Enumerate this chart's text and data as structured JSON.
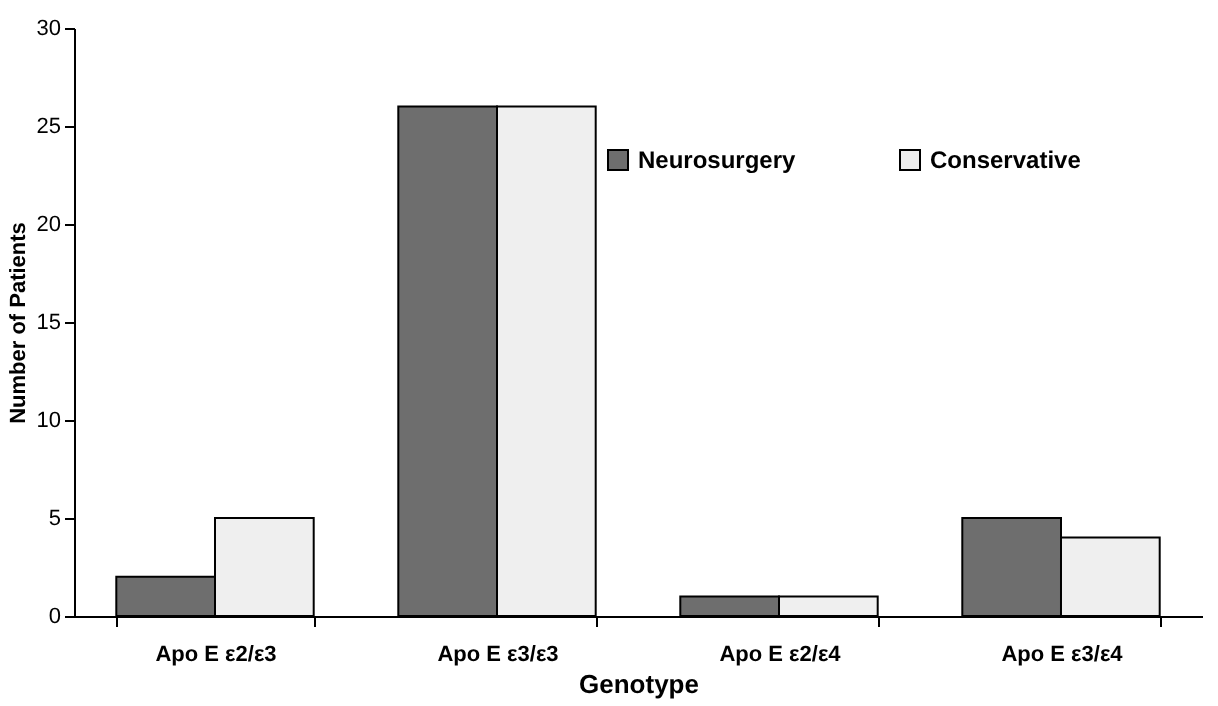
{
  "chart_data": {
    "type": "bar",
    "xlabel": "Genotype",
    "ylabel": "Number of Patients",
    "categories": [
      "Apo E ε2/ε3",
      "Apo E ε3/ε3",
      "Apo E ε2/ε4",
      "Apo E ε3/ε4"
    ],
    "series": [
      {
        "name": "Neurosurgery",
        "color": "#6e6e6e",
        "values": [
          2,
          26,
          1,
          5
        ]
      },
      {
        "name": "Conservative",
        "color": "#efefef",
        "values": [
          5,
          26,
          1,
          4
        ]
      }
    ],
    "ylim": [
      0,
      30
    ],
    "yticks": [
      0,
      5,
      10,
      15,
      20,
      25,
      30
    ],
    "grid": false,
    "legend": "top right"
  }
}
